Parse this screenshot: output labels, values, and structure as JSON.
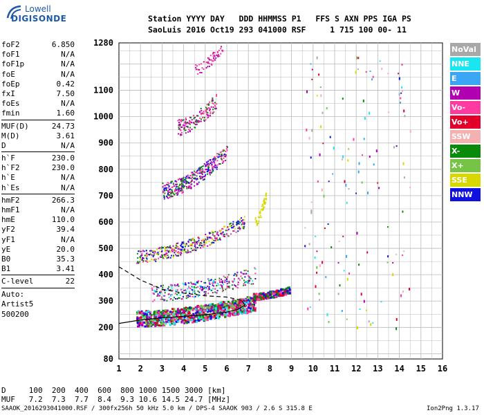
{
  "logo": {
    "line1": "Lowell",
    "line2": "DIGISONDE"
  },
  "header": {
    "line1": "Station YYYY DAY   DDD HHMMSS P1   FFS S AXN PPS IGA PS",
    "line2": "SaoLuis 2016 Oct19 293 041000 RSF     1 715 100 00- 11"
  },
  "params": [
    {
      "k": "foF2",
      "v": "6.850"
    },
    {
      "k": "foF1",
      "v": "N/A"
    },
    {
      "k": "foF1p",
      "v": "N/A"
    },
    {
      "k": "foE",
      "v": "N/A"
    },
    {
      "k": "foEp",
      "v": "0.42"
    },
    {
      "k": "fxI",
      "v": "7.50"
    },
    {
      "k": "foEs",
      "v": "N/A"
    },
    {
      "k": "fmin",
      "v": "1.60"
    },
    {
      "k": "MUF(D)",
      "v": "24.73",
      "sep": true
    },
    {
      "k": "M(D)",
      "v": "3.61"
    },
    {
      "k": "D",
      "v": "N/A"
    },
    {
      "k": "h`F",
      "v": "230.0",
      "sep": true
    },
    {
      "k": "h`F2",
      "v": "230.0"
    },
    {
      "k": "h`E",
      "v": "N/A"
    },
    {
      "k": "h`Es",
      "v": "N/A"
    },
    {
      "k": "hmF2",
      "v": "266.3",
      "sep": true
    },
    {
      "k": "hmF1",
      "v": "N/A"
    },
    {
      "k": "hmE",
      "v": "110.0"
    },
    {
      "k": "yF2",
      "v": "39.4"
    },
    {
      "k": "yF1",
      "v": "N/A"
    },
    {
      "k": "yE",
      "v": "20.0"
    },
    {
      "k": "B0",
      "v": "35.3"
    },
    {
      "k": "B1",
      "v": "3.41"
    },
    {
      "k": "C-level",
      "v": "22",
      "sep": true
    }
  ],
  "auto": {
    "label": "Auto:",
    "artist": "Artist5",
    "version": "500200"
  },
  "legend": [
    {
      "label": "NoVal",
      "color": "#a8a8a8"
    },
    {
      "label": "NNE",
      "color": "#19e6f0"
    },
    {
      "label": "E",
      "color": "#3aa6f5"
    },
    {
      "label": "W",
      "color": "#b000b0"
    },
    {
      "label": "Vo-",
      "color": "#ff3aa0"
    },
    {
      "label": "Vo+",
      "color": "#e0002a"
    },
    {
      "label": "SSW",
      "color": "#f5b0b0"
    },
    {
      "label": "X-",
      "color": "#0a8a0a"
    },
    {
      "label": "X+",
      "color": "#76c446"
    },
    {
      "label": "SSE",
      "color": "#d8d800"
    },
    {
      "label": "NNW",
      "color": "#1010e0"
    }
  ],
  "chart_data": {
    "type": "scatter",
    "xlabel": "",
    "ylabel": "",
    "xlim": [
      1,
      16
    ],
    "ylim": [
      80,
      1280
    ],
    "x_ticks": [
      "1",
      "2",
      "3",
      "4",
      "5",
      "6",
      "7",
      "8",
      "9",
      "10",
      "11",
      "12",
      "13",
      "14",
      "15",
      "16"
    ],
    "y_ticks": [
      "80",
      "200",
      "300",
      "400",
      "500",
      "600",
      "700",
      "800",
      "900",
      "1000",
      "1100",
      "1280"
    ],
    "y_tick_values": [
      80,
      200,
      300,
      400,
      500,
      600,
      700,
      800,
      900,
      1000,
      1100,
      1280
    ],
    "traces": [
      {
        "name": "virtual-height-trace",
        "points": [
          [
            1.0,
            215
          ],
          [
            2.0,
            228
          ],
          [
            3.0,
            236
          ],
          [
            4.0,
            242
          ],
          [
            5.0,
            248
          ],
          [
            6.0,
            258
          ],
          [
            6.5,
            268
          ],
          [
            6.85,
            285
          ],
          [
            6.7,
            300
          ]
        ]
      },
      {
        "name": "dashed-profile",
        "points": [
          [
            1.0,
            430
          ],
          [
            2.0,
            380
          ],
          [
            3.0,
            345
          ],
          [
            4.0,
            330
          ],
          [
            5.0,
            320
          ],
          [
            6.0,
            315
          ],
          [
            6.85,
            300
          ]
        ]
      }
    ]
  },
  "bottom": {
    "line1": "D     100  200  400  600  800 1000 1500 3000 [km]",
    "line2": "MUF   7.2  7.3  7.7  8.4  9.3 10.6 14.5 24.7 [MHz]"
  },
  "footer": {
    "left": "SAAOK_2016293041000.RSF / 300fx256h 50 kHz 5.0 km / DPS-4 SAAOK 903 / 2.6 S 315.8 E",
    "right": "Ion2Png 1.3.17"
  }
}
